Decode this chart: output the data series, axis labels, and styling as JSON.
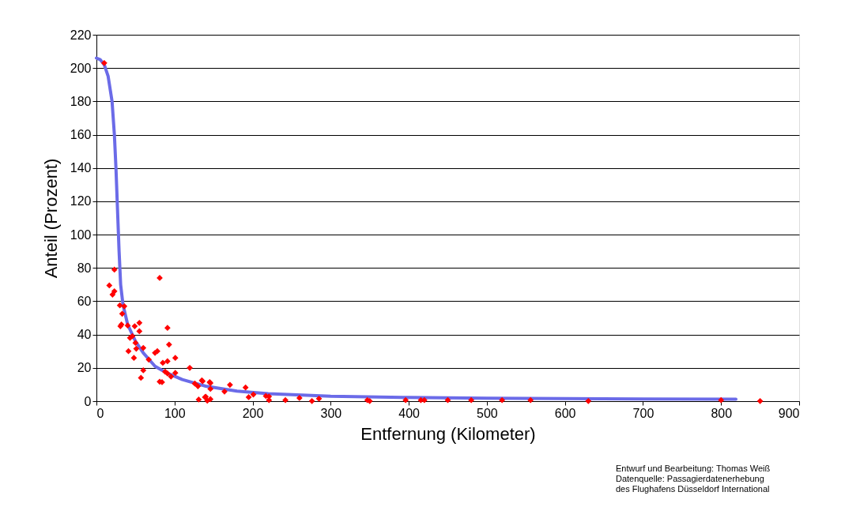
{
  "chart_data": {
    "type": "scatter",
    "xlabel": "Entfernung (Kilometer)",
    "ylabel": "Anteil (Prozent)",
    "xlim": [
      0,
      900
    ],
    "xticks": [
      0,
      100,
      200,
      300,
      400,
      500,
      600,
      700,
      800,
      900
    ],
    "ylim": [
      0,
      220
    ],
    "yticks": [
      0,
      20,
      40,
      60,
      80,
      100,
      120,
      140,
      160,
      180,
      200,
      220
    ],
    "grid": "y",
    "marker": "diamond",
    "annotations": [
      "Entwurf und Bearbeitung: Thomas Weiß",
      "Datenquelle: Passagierdatenerhebung",
      "des Flughafens Düsseldorf International"
    ],
    "series": [
      {
        "type": "line",
        "color": "#6b6be8",
        "marker": "none",
        "line_style": "solid",
        "x": [
          0,
          5,
          10,
          15,
          20,
          23,
          25,
          27,
          29,
          31,
          34,
          40,
          50,
          60,
          75,
          90,
          110,
          140,
          180,
          220,
          300,
          400,
          500,
          600,
          700,
          819
        ],
        "values": [
          206,
          205,
          202,
          195,
          180,
          160,
          140,
          115,
          90,
          70,
          58,
          46,
          36,
          29,
          21,
          17,
          13,
          9,
          6,
          4.5,
          3,
          2.2,
          1.8,
          1.5,
          1.3,
          1.2
        ]
      },
      {
        "color": "#ff0000",
        "x": [
          10,
          23,
          16.5,
          20.6,
          23,
          30,
          35.7,
          33,
          30.7,
          32,
          40,
          49,
          55,
          55,
          81,
          43,
          46,
          50,
          41,
          51,
          48,
          60,
          91,
          93,
          67,
          75,
          78,
          60,
          57,
          85,
          91,
          101,
          81,
          84,
          88,
          91,
          95.5,
          101,
          119.5,
          126,
          130,
          135,
          145,
          131,
          140,
          142,
          136,
          146,
          139,
          146,
          146,
          164,
          171,
          191,
          195,
          201,
          217,
          221,
          221,
          242,
          260,
          276,
          285,
          347,
          350,
          396,
          415.5,
          420,
          450,
          480,
          519.5,
          556,
          630,
          800,
          850
        ],
        "values": [
          203,
          79,
          69.5,
          64,
          66,
          57.5,
          57,
          52.5,
          45,
          46,
          45.4,
          45,
          47,
          42,
          74,
          38,
          39,
          35,
          30,
          31.5,
          26,
          32,
          44,
          34,
          25,
          29,
          30,
          18.5,
          14,
          23,
          24,
          26,
          11.7,
          11.4,
          17.7,
          16.6,
          14.8,
          17,
          20,
          10.6,
          9,
          12.5,
          11.4,
          1,
          2.7,
          0.3,
          12,
          10.9,
          2.4,
          1.2,
          7.4,
          5.8,
          9.8,
          8.2,
          2.4,
          4,
          3.1,
          2.8,
          0.6,
          0.6,
          1.9,
          0.1,
          1.5,
          0.6,
          0.1,
          0.6,
          0.6,
          0.6,
          0.6,
          0.6,
          0.6,
          0.6,
          0.1,
          0.6,
          0.1
        ]
      }
    ]
  }
}
